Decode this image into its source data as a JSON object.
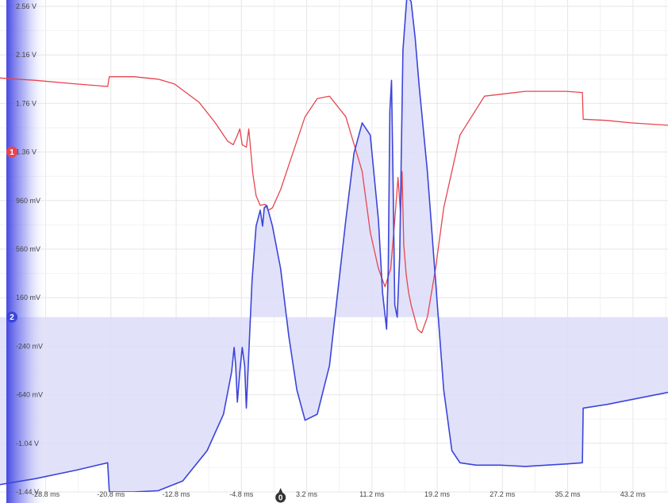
{
  "chart_data": {
    "type": "line",
    "title": "",
    "xlabel": "",
    "ylabel": "",
    "x_ticks": [
      "-28.8 ms",
      "-20.8 ms",
      "-12.8 ms",
      "-4.8 ms",
      "3.2 ms",
      "11.2 ms",
      "19.2 ms",
      "27.2 ms",
      "35.2 ms",
      "43.2 ms"
    ],
    "x_tick_values": [
      -28.8,
      -20.8,
      -12.8,
      -4.8,
      3.2,
      11.2,
      19.2,
      27.2,
      35.2,
      43.2
    ],
    "y_ticks": [
      "2.56 V",
      "2.16 V",
      "1.76 V",
      "1.36 V",
      "960 mV",
      "560 mV",
      "160 mV",
      "-240 mV",
      "-640 mV",
      "-1.04 V",
      "-1.44 V"
    ],
    "y_tick_values": [
      2.56,
      2.16,
      1.76,
      1.36,
      0.96,
      0.56,
      0.16,
      -0.24,
      -0.64,
      -1.04,
      -1.44
    ],
    "xlim": [
      -34.4,
      47.5
    ],
    "ylim": [
      -1.44,
      2.56
    ],
    "grid": true,
    "trigger_marker": "0",
    "series": [
      {
        "channel_marker": "1",
        "color": "#e8454f",
        "x": [
          -34.4,
          -30,
          -25,
          -21.2,
          -21,
          -18,
          -15,
          -13,
          -10,
          -8,
          -6.5,
          -5.8,
          -5.4,
          -5.0,
          -4.7,
          -4.2,
          -3.9,
          -3.4,
          -3.0,
          -2.5,
          -1.9,
          -1.5,
          -1,
          0,
          1,
          2,
          3,
          4.5,
          6,
          8,
          10,
          11,
          12,
          12.8,
          13.5,
          14,
          14.4,
          14.7,
          14.9,
          15.1,
          15.4,
          15.7,
          16,
          16.4,
          16.8,
          17.3,
          18,
          19,
          20,
          22,
          25,
          30,
          35,
          37,
          37.1,
          40,
          43,
          47.5
        ],
        "y": [
          1.97,
          1.95,
          1.92,
          1.9,
          1.98,
          1.98,
          1.96,
          1.92,
          1.77,
          1.6,
          1.45,
          1.42,
          1.48,
          1.55,
          1.42,
          1.4,
          1.55,
          1.18,
          1.0,
          0.92,
          0.93,
          0.88,
          0.9,
          1.05,
          1.25,
          1.45,
          1.65,
          1.8,
          1.82,
          1.65,
          1.2,
          0.7,
          0.4,
          0.25,
          0.4,
          0.8,
          1.15,
          0.85,
          1.2,
          0.6,
          0.35,
          0.2,
          0.1,
          0.0,
          -0.1,
          -0.13,
          0.0,
          0.4,
          0.9,
          1.5,
          1.82,
          1.86,
          1.86,
          1.85,
          1.63,
          1.62,
          1.6,
          1.58
        ]
      },
      {
        "channel_marker": "2",
        "color": "#3b45d9",
        "x": [
          -34.4,
          -30,
          -25,
          -21.2,
          -21,
          -18,
          -15,
          -12,
          -9,
          -7,
          -6,
          -5.7,
          -5.5,
          -5.3,
          -5.0,
          -4.7,
          -4.4,
          -4.2,
          -3.9,
          -3.5,
          -3.0,
          -2.5,
          -2.2,
          -2.0,
          -1.7,
          -1.4,
          -1,
          0,
          1,
          2,
          3,
          4.5,
          6,
          7,
          8,
          9,
          10,
          11,
          12,
          12.5,
          13,
          13.2,
          13.4,
          13.6,
          13.8,
          14.0,
          14.3,
          14.6,
          15,
          15.5,
          16,
          16.5,
          17,
          18,
          19,
          20,
          21,
          22,
          24,
          27,
          30,
          35,
          37,
          37.1,
          40,
          43,
          47.5
        ],
        "y": [
          -1.38,
          -1.33,
          -1.26,
          -1.2,
          -1.44,
          -1.44,
          -1.43,
          -1.35,
          -1.1,
          -0.8,
          -0.45,
          -0.25,
          -0.4,
          -0.7,
          -0.45,
          -0.25,
          -0.4,
          -0.75,
          -0.3,
          0.3,
          0.75,
          0.88,
          0.75,
          0.9,
          0.92,
          0.85,
          0.75,
          0.4,
          -0.15,
          -0.6,
          -0.85,
          -0.8,
          -0.4,
          0.2,
          0.8,
          1.35,
          1.6,
          1.5,
          0.8,
          0.2,
          -0.1,
          0.4,
          1.7,
          1.95,
          1.1,
          0.1,
          0.0,
          0.5,
          2.2,
          2.65,
          2.6,
          2.3,
          1.9,
          1.2,
          0.3,
          -0.6,
          -1.1,
          -1.2,
          -1.22,
          -1.22,
          -1.23,
          -1.21,
          -1.2,
          -0.75,
          -0.72,
          -0.68,
          -0.62
        ]
      }
    ]
  }
}
